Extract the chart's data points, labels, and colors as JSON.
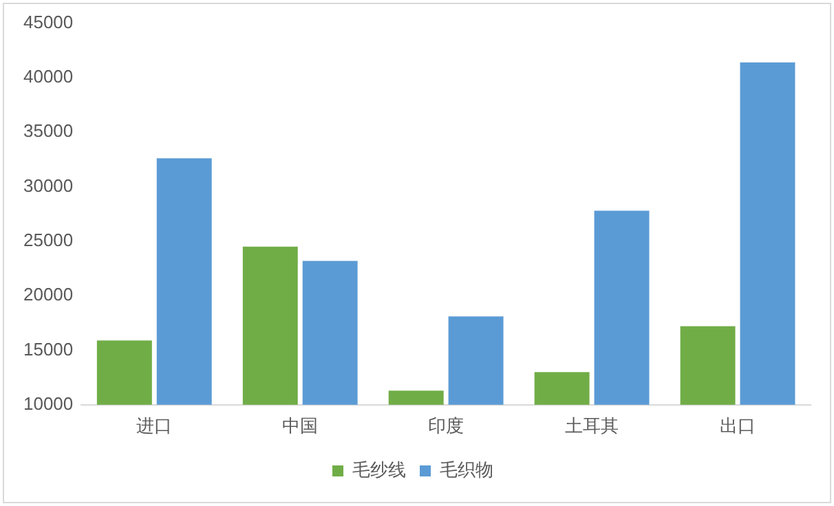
{
  "chart_data": {
    "type": "bar",
    "categories": [
      "进口",
      "中国",
      "印度",
      "土耳其",
      "出口"
    ],
    "series": [
      {
        "name": "毛纱线",
        "color": "#70ad47",
        "values": [
          15900,
          24500,
          11300,
          13000,
          17200
        ]
      },
      {
        "name": "毛织物",
        "color": "#5b9bd5",
        "values": [
          32600,
          23200,
          18100,
          27800,
          41400
        ]
      }
    ],
    "ylim": [
      10000,
      45000
    ],
    "yticks": [
      10000,
      15000,
      20000,
      25000,
      30000,
      35000,
      40000,
      45000
    ],
    "grid": false,
    "legend": "bottom"
  }
}
